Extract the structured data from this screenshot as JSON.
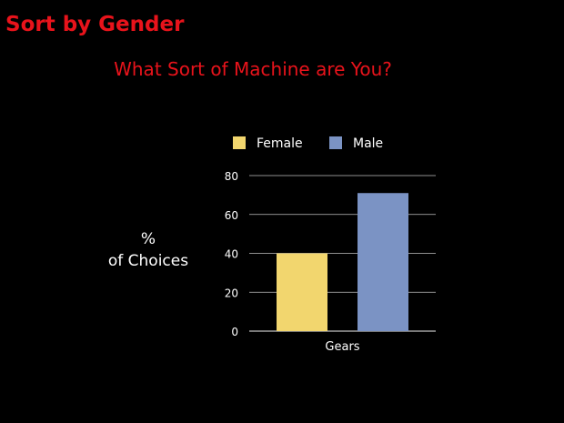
{
  "slide": {
    "heading": "Sort by Gender"
  },
  "colors": {
    "background": "#000000",
    "heading": "#e8131b",
    "text": "#ffffff",
    "gridline": "#bfbfbf",
    "female": "#f2d66e",
    "male": "#7b93c4"
  },
  "chart_data": {
    "type": "bar",
    "title": "What Sort of Machine are You?",
    "ylabel": [
      "%",
      "of Choices"
    ],
    "xlabel": "",
    "categories": [
      "Gears"
    ],
    "series": [
      {
        "name": "Female",
        "values": [
          40
        ]
      },
      {
        "name": "Male",
        "values": [
          71
        ]
      }
    ],
    "ylim": [
      0,
      80
    ],
    "yticks": [
      0,
      20,
      40,
      60,
      80
    ],
    "grid": true,
    "legend_position": "top"
  }
}
